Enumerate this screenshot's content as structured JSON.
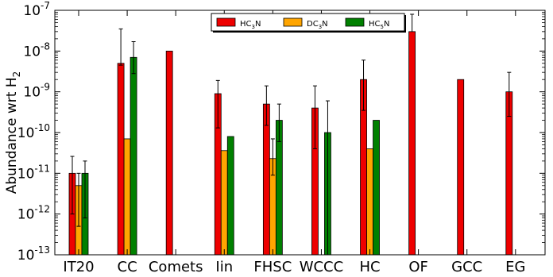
{
  "chart_data": {
    "type": "bar",
    "ylabel": "Abundance wrt H",
    "ylabel_sub": "2",
    "yscale": "log",
    "ylim": [
      1e-13,
      1e-07
    ],
    "y_ticks": [
      {
        "value": 1e-13,
        "base": "10",
        "exp": "-13"
      },
      {
        "value": 1e-12,
        "base": "10",
        "exp": "-12"
      },
      {
        "value": 1e-11,
        "base": "10",
        "exp": "-11"
      },
      {
        "value": 1e-10,
        "base": "10",
        "exp": "-10"
      },
      {
        "value": 1e-09,
        "base": "10",
        "exp": "-9"
      },
      {
        "value": 1e-08,
        "base": "10",
        "exp": "-8"
      },
      {
        "value": 1e-07,
        "base": "10",
        "exp": "-7"
      }
    ],
    "categories": [
      "IT20",
      "CC",
      "Comets",
      "Iin",
      "FHSC",
      "WCCC",
      "HC",
      "OF",
      "GCC",
      "EG"
    ],
    "legend_position": "top-center",
    "series": [
      {
        "name": "HC3N",
        "label_main": "HC",
        "label_sub": "3",
        "label_tail": "N",
        "color": "#ee0000",
        "values": [
          1e-11,
          5e-09,
          1e-08,
          9e-10,
          5e-10,
          4e-10,
          2e-09,
          3e-08,
          2e-09,
          1e-09
        ],
        "err_low": [
          1e-12,
          4.5e-09,
          null,
          1.3e-10,
          1.5e-10,
          4e-11,
          3.5e-10,
          null,
          null,
          2.5e-10
        ],
        "err_high": [
          2.6e-11,
          3.5e-08,
          null,
          1.9e-09,
          1.4e-09,
          1.4e-09,
          6e-09,
          8e-08,
          null,
          3e-09
        ]
      },
      {
        "name": "DC3N",
        "label_main": "DC",
        "label_sub": "3",
        "label_tail": "N",
        "color": "#ffa500",
        "values": [
          5e-12,
          7e-11,
          null,
          3.6e-11,
          2.3e-11,
          null,
          4e-11,
          null,
          null,
          null
        ],
        "err_low": [
          5e-13,
          null,
          null,
          null,
          9e-12,
          null,
          null,
          null,
          null,
          null
        ],
        "err_high": [
          1e-11,
          null,
          null,
          null,
          7e-11,
          null,
          null,
          null,
          null,
          null
        ]
      },
      {
        "name": "HC5N",
        "label_main": "HC",
        "label_sub": "5",
        "label_tail": "N",
        "color": "#008000",
        "values": [
          1e-11,
          7e-09,
          null,
          8e-11,
          2e-10,
          1e-10,
          2e-10,
          null,
          null,
          null
        ],
        "err_low": [
          8e-13,
          2.8e-09,
          null,
          null,
          6e-11,
          1e-13,
          null,
          null,
          null,
          null
        ],
        "err_high": [
          2e-11,
          1.7e-08,
          null,
          null,
          5e-10,
          6e-10,
          null,
          null,
          null,
          null
        ]
      }
    ]
  }
}
